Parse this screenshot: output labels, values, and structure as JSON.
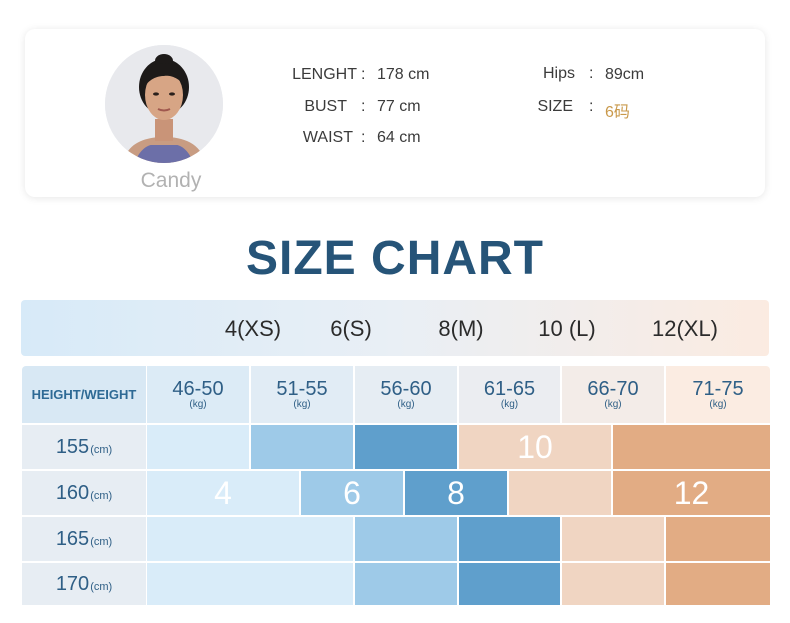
{
  "model": {
    "name": "Candy",
    "avatar_icon": "woman-portrait-icon",
    "measurements": [
      {
        "label": "LENGHT",
        "value": "178 cm"
      },
      {
        "label": "BUST",
        "value": "77 cm"
      },
      {
        "label": "WAIST",
        "value": "64 cm"
      },
      {
        "label": "Hips",
        "value": "89cm"
      },
      {
        "label": "SIZE",
        "value": "6码"
      }
    ],
    "size_value_color": "#c9994b"
  },
  "chart": {
    "title": "SIZE CHART",
    "sizes": [
      "4(XS)",
      "6(S)",
      "8(M)",
      "10 (L)",
      "12(XL)"
    ],
    "corner_label": "HEIGHT/WEIGHT",
    "weights": [
      {
        "range": "46-50",
        "unit": "(kg)"
      },
      {
        "range": "51-55",
        "unit": "(kg)"
      },
      {
        "range": "56-60",
        "unit": "(kg)"
      },
      {
        "range": "61-65",
        "unit": "(kg)"
      },
      {
        "range": "66-70",
        "unit": "(kg)"
      },
      {
        "range": "71-75",
        "unit": "(kg)"
      }
    ],
    "heights": [
      {
        "value": "155",
        "unit": "(cm)"
      },
      {
        "value": "160",
        "unit": "(cm)"
      },
      {
        "value": "165",
        "unit": "(cm)"
      },
      {
        "value": "170",
        "unit": "(cm)"
      }
    ],
    "zone_labels": {
      "size4": "4",
      "size6": "6",
      "size8": "8",
      "size10": "10",
      "size12": "12"
    },
    "colors": {
      "size4": "#d9ecf9",
      "size6": "#9ecae8",
      "size8": "#5f9fcc",
      "size10": "#f0d5c2",
      "size12": "#e2ac84",
      "title": "#265478"
    }
  }
}
